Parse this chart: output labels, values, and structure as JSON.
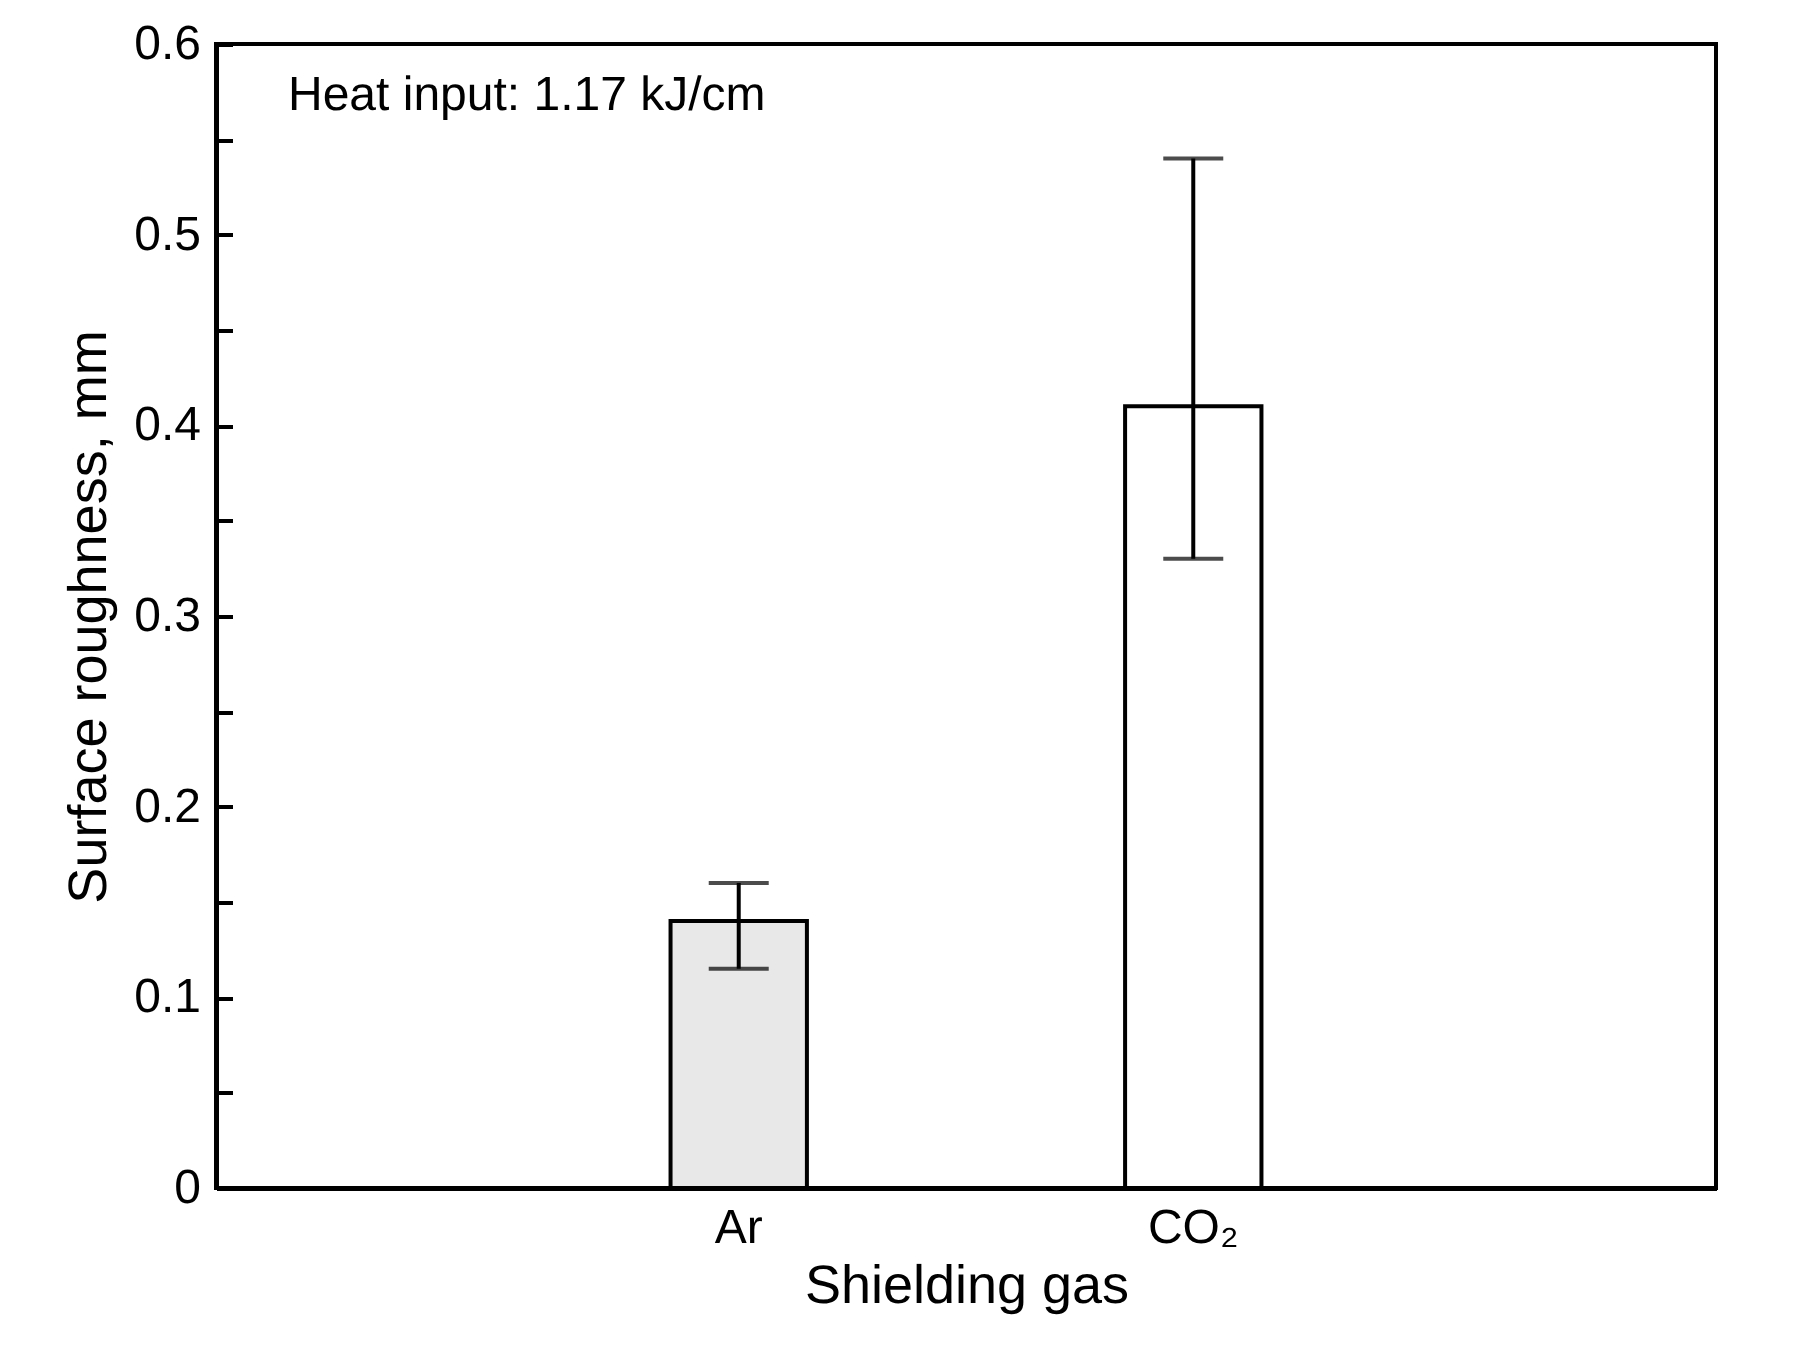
{
  "chart_data": {
    "type": "bar",
    "xlabel": "Shielding gas",
    "ylabel": "Surface roughness, mm",
    "annotations": [
      "Heat input: 1.17 kJ/cm"
    ],
    "categories": [
      null,
      "Ar",
      "CO₂",
      null
    ],
    "values": [
      null,
      0.14,
      0.41,
      null
    ],
    "colors": [
      "#e8e8e8",
      "#e8e8e8",
      "#ffffff",
      "#ffffff"
    ],
    "errors": [
      null,
      [
        0.115,
        0.16
      ],
      [
        0.33,
        0.54
      ],
      null
    ],
    "ylim": [
      0,
      0.6
    ],
    "yticks": [
      0,
      {
        "value": 0.05,
        "label": null
      },
      0.1,
      {
        "value": 0.15,
        "label": null
      },
      0.2,
      {
        "value": 0.25,
        "label": null
      },
      0.3,
      {
        "value": 0.35,
        "label": null
      },
      0.4,
      {
        "value": 0.45,
        "label": null
      },
      0.5,
      {
        "value": 0.55,
        "label": null
      },
      0.6
    ],
    "grid": false
  }
}
